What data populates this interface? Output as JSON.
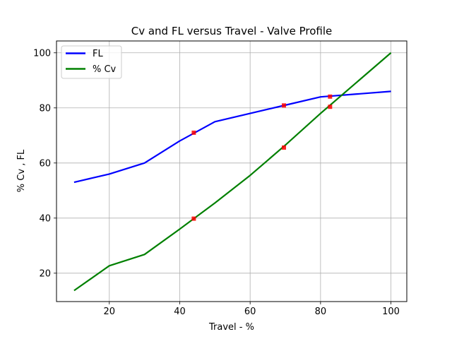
{
  "chart_data": {
    "type": "line",
    "title": "Cv and FL versus Travel - Valve Profile",
    "xlabel": "Travel - %",
    "ylabel": "% Cv , FL",
    "xlim": [
      5,
      104.5
    ],
    "ylim": [
      9.7,
      104.3
    ],
    "xticks": [
      20,
      40,
      60,
      80,
      100
    ],
    "yticks": [
      20,
      40,
      60,
      80,
      100
    ],
    "grid": true,
    "legend_position": "upper-left",
    "series": [
      {
        "name": "FL",
        "color": "#0000ff",
        "x": [
          10,
          20,
          30,
          40,
          50,
          60,
          70,
          80,
          90,
          100
        ],
        "y": [
          53,
          56,
          60,
          68,
          75,
          78,
          81,
          84,
          85,
          86
        ]
      },
      {
        "name": "% Cv",
        "color": "#008000",
        "x": [
          10,
          20,
          30,
          40,
          50,
          60,
          70,
          80,
          90,
          100
        ],
        "y": [
          13.7,
          22.7,
          26.8,
          36,
          45.5,
          55.5,
          66.5,
          78,
          89,
          100
        ]
      }
    ],
    "markers": {
      "color": "#ff0000",
      "points": [
        {
          "x": 44,
          "y": 71
        },
        {
          "x": 69.6,
          "y": 80.9
        },
        {
          "x": 82.7,
          "y": 84.1
        },
        {
          "x": 44,
          "y": 39.8
        },
        {
          "x": 69.6,
          "y": 65.6
        },
        {
          "x": 82.7,
          "y": 80.4
        }
      ]
    }
  }
}
